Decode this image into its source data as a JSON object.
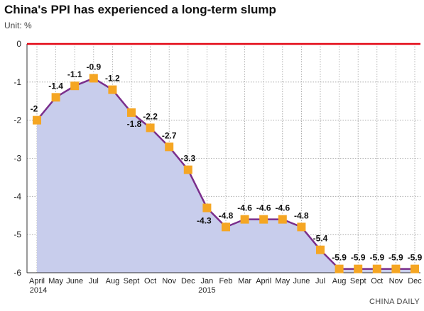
{
  "title": "China's PPI has experienced a long-term slump",
  "unit": "Unit: %",
  "credit": "CHINA DAILY",
  "colors": {
    "area": "#c8cdec",
    "line": "#7a2e8c",
    "marker": "#f5a623",
    "zero_line": "#e30613",
    "grid": "#9a9a9a"
  },
  "chart_data": {
    "type": "area",
    "categories": [
      "April",
      "May",
      "June",
      "Jul",
      "Aug",
      "Sept",
      "Oct",
      "Nov",
      "Dec",
      "Jan",
      "Feb",
      "Mar",
      "April",
      "May",
      "June",
      "Jul",
      "Aug",
      "Sept",
      "Oct",
      "Nov",
      "Dec"
    ],
    "year_labels": {
      "0": "2014",
      "9": "2015"
    },
    "values": [
      -2,
      -1.4,
      -1.1,
      -0.9,
      -1.2,
      -1.8,
      -2.2,
      -2.7,
      -3.3,
      -4.3,
      -4.8,
      -4.6,
      -4.6,
      -4.6,
      -4.8,
      -5.4,
      -5.9,
      -5.9,
      -5.9,
      -5.9,
      -5.9
    ],
    "data_labels": [
      "-2",
      "-1.4",
      "-1.1",
      "-0.9",
      "-1.2",
      "-1.8",
      "-2.2",
      "-2.7",
      "-3.3",
      "-4.3",
      "-4.8",
      "-4.6",
      "-4.6",
      "-4.6",
      "-4.8",
      "-5.4",
      "-5.9",
      "-5.9",
      "-5.9",
      "-5.9",
      "-5.9"
    ],
    "y_ticks": [
      "0",
      "-1",
      "-2",
      "-3",
      "-4",
      "-5",
      "-6"
    ],
    "ylim": [
      -6,
      0
    ],
    "grid": true
  }
}
